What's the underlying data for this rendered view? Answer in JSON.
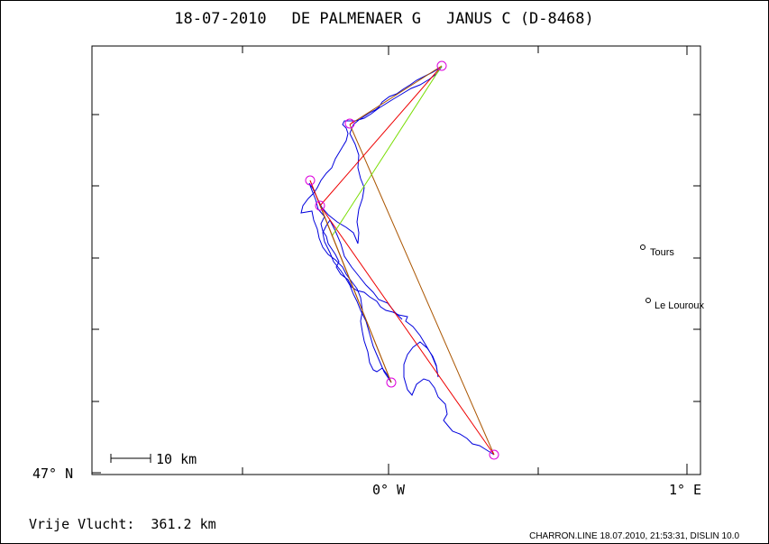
{
  "title": {
    "date": "18-07-2010",
    "pilot": "DE PALMENAER G",
    "glider": "JANUS C (D-8468)"
  },
  "axes": {
    "lat_label": "47° N",
    "lon_labels": [
      "0° W",
      "1° E"
    ]
  },
  "scale_bar": {
    "label": "10 km"
  },
  "cities": [
    {
      "name": "Tours"
    },
    {
      "name": "Le Louroux"
    }
  ],
  "footer": {
    "distance_label": "Vrije Vlucht:",
    "distance_value": "361.2 km",
    "credit": "CHARRON.LINE 18.07.2010, 21:53:31, DISLIN 10.0"
  },
  "colors": {
    "track": "#0000dd",
    "task_line": "#aa5500",
    "red_line": "#ee0000",
    "green_line": "#77dd00",
    "turnpoint": "#dd00dd"
  }
}
